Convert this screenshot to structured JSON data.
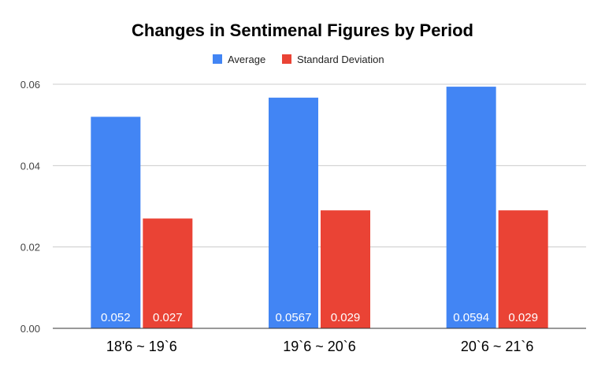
{
  "chart_data": {
    "type": "bar",
    "title": "Changes in Sentimenal Figures by Period",
    "categories": [
      "18'6 ~ 19`6",
      "19`6 ~ 20`6",
      "20`6 ~ 21`6"
    ],
    "series": [
      {
        "name": "Average",
        "values": [
          0.052,
          0.0567,
          0.0594
        ],
        "labels": [
          "0.052",
          "0.0567",
          "0.0594"
        ],
        "color": "#4285f4"
      },
      {
        "name": "Standard Deviation",
        "values": [
          0.027,
          0.029,
          0.029
        ],
        "labels": [
          "0.027",
          "0.029",
          "0.029"
        ],
        "color": "#ea4335"
      }
    ],
    "ylim": [
      0,
      0.06
    ],
    "yticks": [
      "0.00",
      "0.02",
      "0.04",
      "0.06"
    ],
    "ytick_values": [
      0,
      0.02,
      0.04,
      0.06
    ],
    "xlabel": "",
    "ylabel": "",
    "grid": true,
    "legend_position": "top-center"
  }
}
